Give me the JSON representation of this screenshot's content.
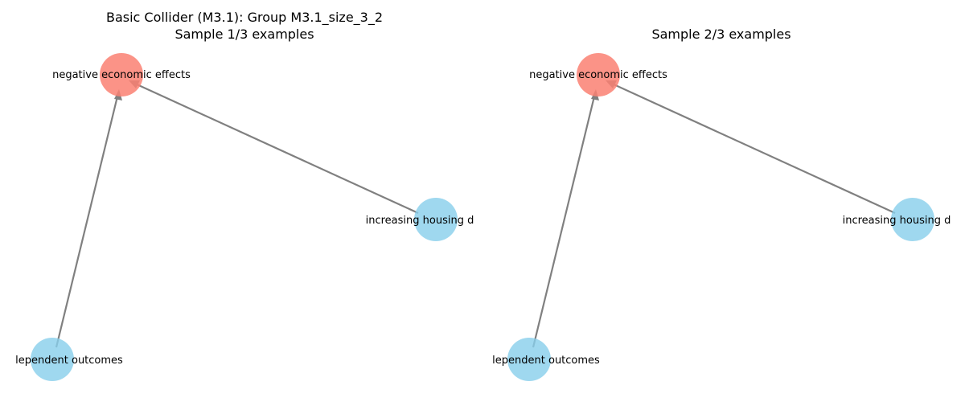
{
  "panels": [
    {
      "title_line1": "Basic Collider (M3.1): Group M3.1_size_3_2",
      "title_line2": "Sample 1/3 examples"
    },
    {
      "title_line1": "",
      "title_line2": "Sample 2/3 examples"
    }
  ],
  "nodes": {
    "effect": "negative economic effects",
    "cause_right": "increasing housing d",
    "cause_left": "lependent outcomes"
  },
  "colors": {
    "effect_node": "#fa8072",
    "cause_node": "#87ceeb",
    "edge": "#808080"
  }
}
